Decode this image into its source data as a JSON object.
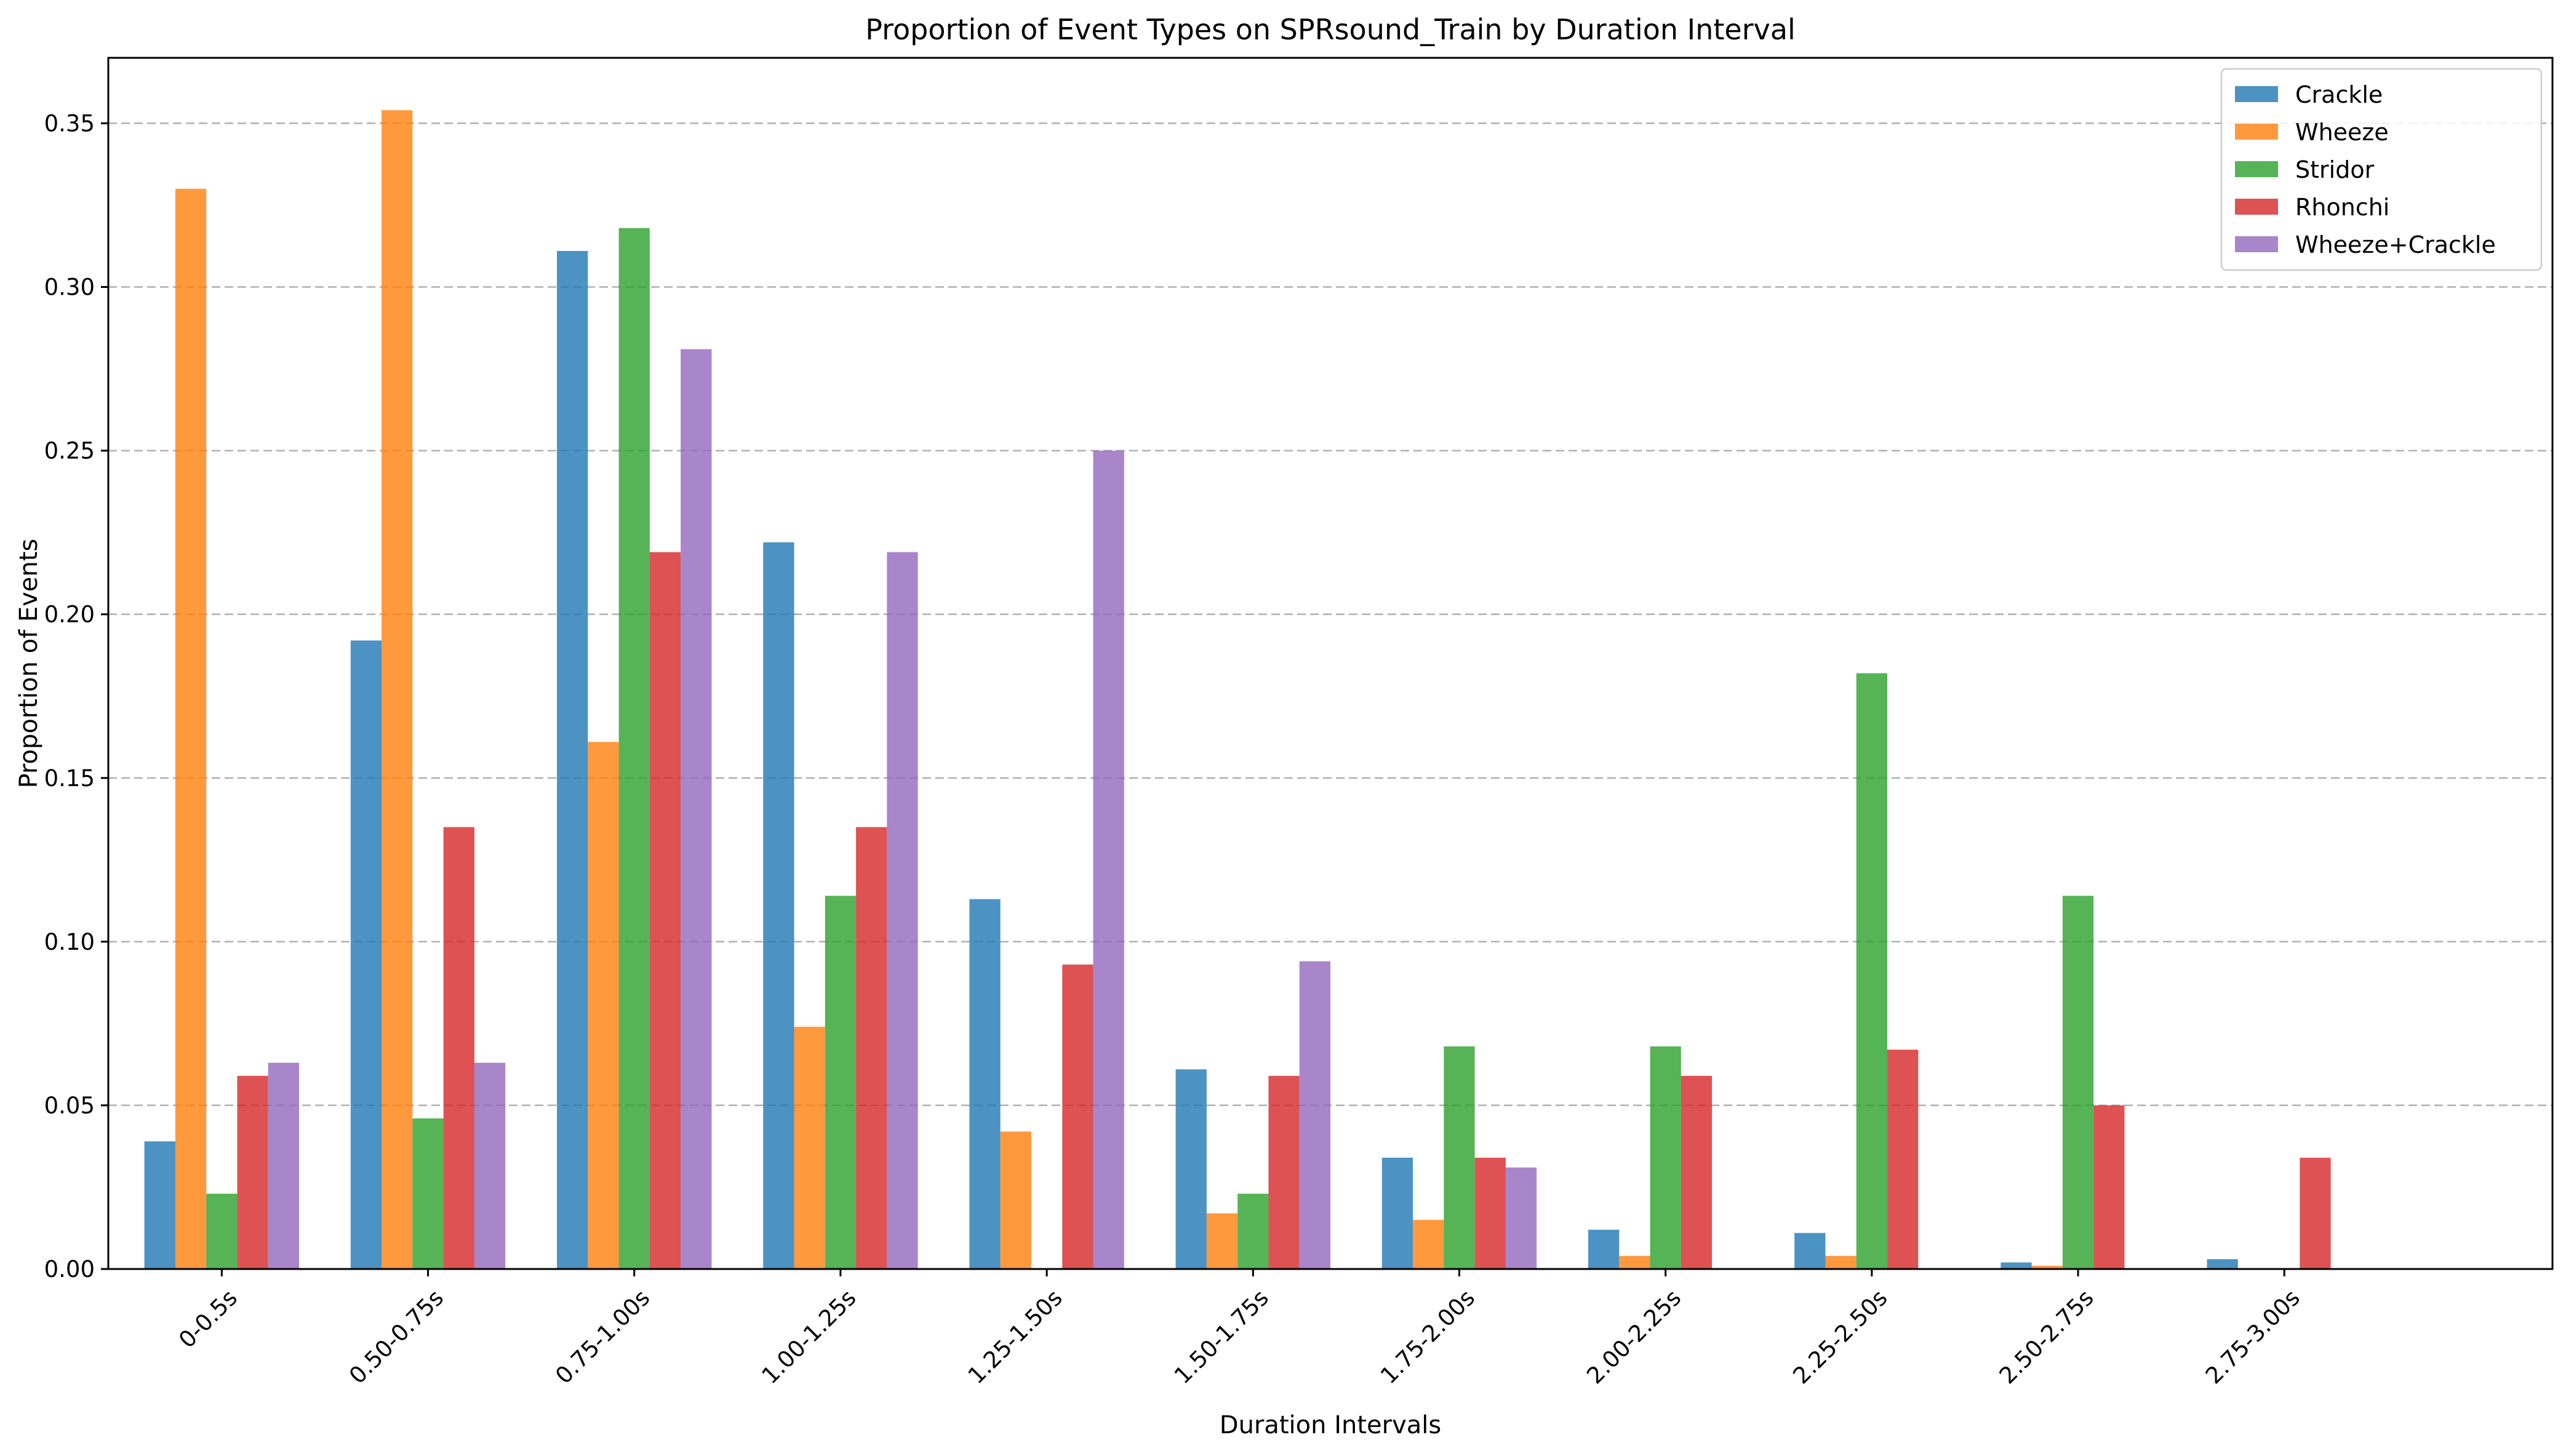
{
  "chart_data": {
    "type": "bar",
    "title": "Proportion of Event Types on SPRsound_Train by Duration Interval",
    "xlabel": "Duration Intervals",
    "ylabel": "Proportion of Events",
    "ylim": [
      0,
      0.37
    ],
    "yticks": [
      0.0,
      0.05,
      0.1,
      0.15,
      0.2,
      0.25,
      0.3,
      0.35
    ],
    "ytick_labels": [
      "0.00",
      "0.05",
      "0.10",
      "0.15",
      "0.20",
      "0.25",
      "0.30",
      "0.35"
    ],
    "grid": "y-dashed",
    "legend_position": "top-right",
    "categories": [
      "0-0.5s",
      "0.50-0.75s",
      "0.75-1.00s",
      "1.00-1.25s",
      "1.25-1.50s",
      "1.50-1.75s",
      "1.75-2.00s",
      "2.00-2.25s",
      "2.25-2.50s",
      "2.50-2.75s",
      "2.75-3.00s"
    ],
    "series": [
      {
        "name": "Crackle",
        "color": "#1f77b4",
        "values": [
          0.039,
          0.192,
          0.311,
          0.222,
          0.113,
          0.061,
          0.034,
          0.012,
          0.011,
          0.002,
          0.003
        ]
      },
      {
        "name": "Wheeze",
        "color": "#ff7f0e",
        "values": [
          0.33,
          0.354,
          0.161,
          0.074,
          0.042,
          0.017,
          0.015,
          0.004,
          0.004,
          0.001,
          0.0
        ]
      },
      {
        "name": "Stridor",
        "color": "#2ca02c",
        "values": [
          0.023,
          0.046,
          0.318,
          0.114,
          0.0,
          0.023,
          0.068,
          0.068,
          0.182,
          0.114,
          0.0
        ]
      },
      {
        "name": "Rhonchi",
        "color": "#d62728",
        "values": [
          0.059,
          0.135,
          0.219,
          0.135,
          0.093,
          0.059,
          0.034,
          0.059,
          0.067,
          0.05,
          0.034
        ]
      },
      {
        "name": "Wheeze+Crackle",
        "color": "#9467bd",
        "values": [
          0.063,
          0.063,
          0.281,
          0.219,
          0.25,
          0.094,
          0.031,
          0.0,
          0.0,
          0.0,
          0.0
        ]
      }
    ]
  }
}
